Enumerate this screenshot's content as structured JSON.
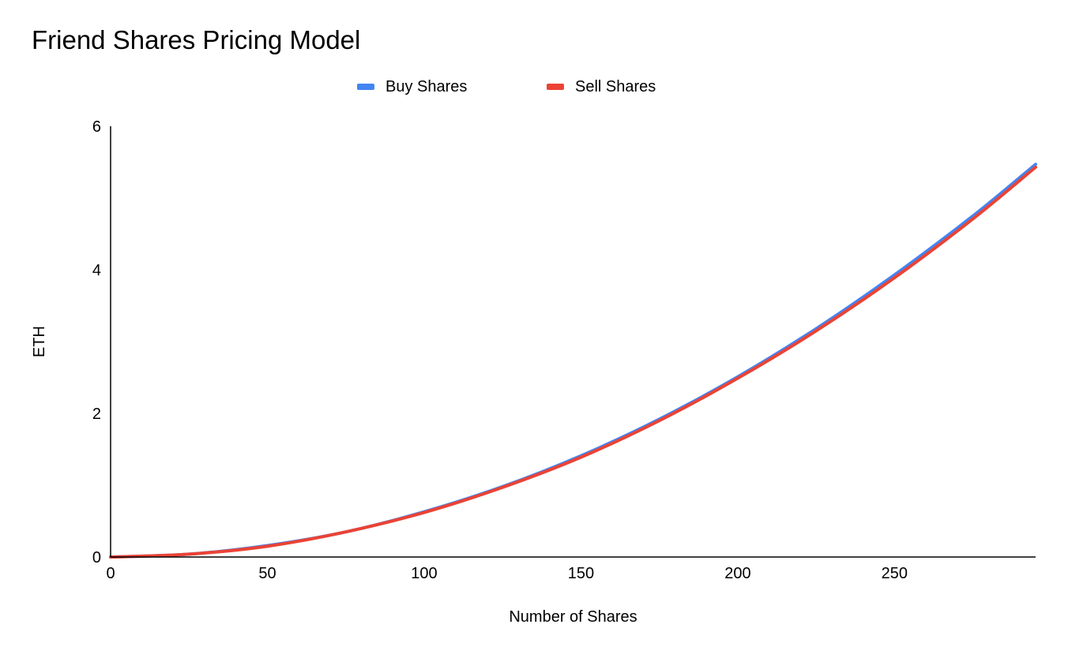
{
  "chart_data": {
    "type": "line",
    "title": "Friend Shares Pricing Model",
    "xlabel": "Number of Shares",
    "ylabel": "ETH",
    "xlim": [
      0,
      295
    ],
    "ylim": [
      0,
      6
    ],
    "x_ticks": [
      0,
      50,
      100,
      150,
      200,
      250
    ],
    "y_ticks": [
      0,
      2,
      4,
      6
    ],
    "grid": false,
    "legend_position": "top-center",
    "series": [
      {
        "name": "Buy Shares",
        "color": "#4285F4",
        "x": [
          0,
          25,
          50,
          75,
          100,
          125,
          150,
          175,
          200,
          225,
          250,
          275,
          295
        ],
        "y": [
          0,
          0.04,
          0.16,
          0.35,
          0.63,
          0.98,
          1.41,
          1.92,
          2.51,
          3.18,
          3.93,
          4.75,
          5.47
        ]
      },
      {
        "name": "Sell Shares",
        "color": "#EA4335",
        "x": [
          0,
          25,
          50,
          75,
          100,
          125,
          150,
          175,
          200,
          225,
          250,
          275,
          295
        ],
        "y": [
          0,
          0.04,
          0.15,
          0.35,
          0.62,
          0.97,
          1.39,
          1.9,
          2.49,
          3.15,
          3.89,
          4.71,
          5.43
        ]
      }
    ]
  }
}
